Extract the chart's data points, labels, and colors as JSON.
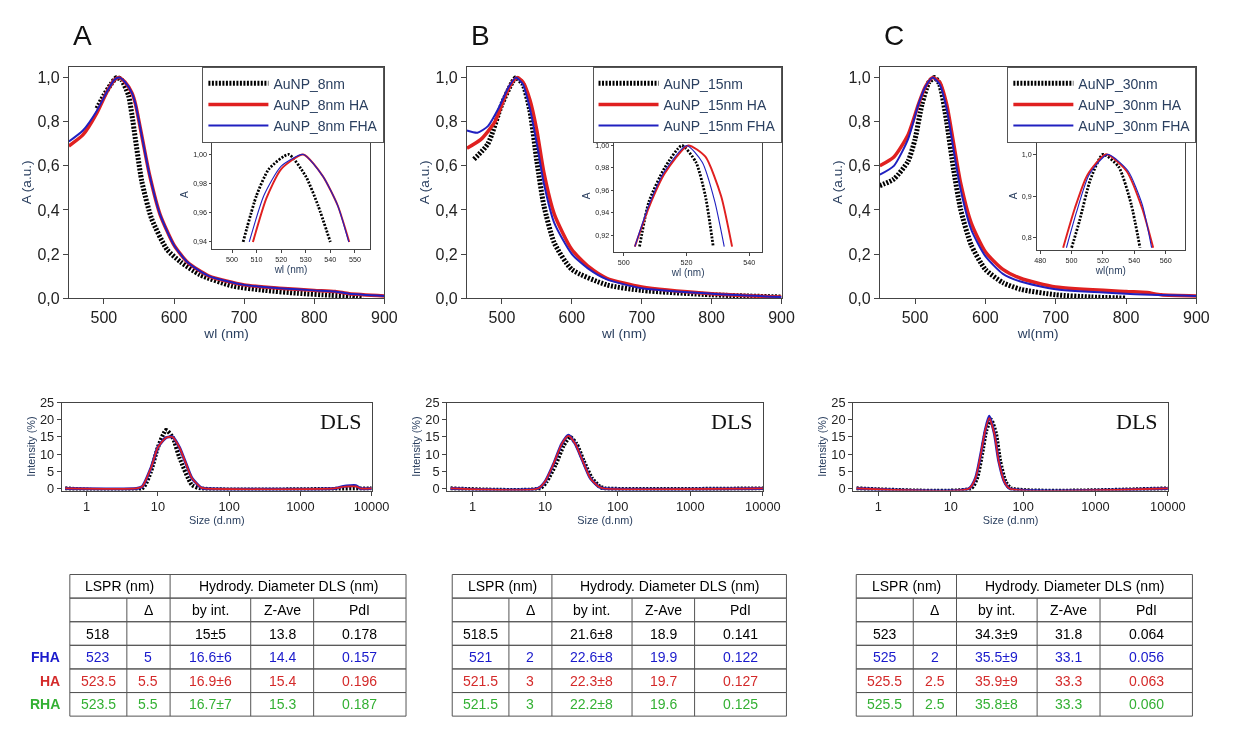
{
  "chart_data": [
    {
      "type": "line",
      "title": "A",
      "xlabel": "wl (nm)",
      "ylabel": "A (a.u.)",
      "xlim": [
        450,
        900
      ],
      "ylim": [
        0,
        1.05
      ],
      "xticks": [
        500,
        600,
        700,
        800,
        900
      ],
      "yticks": [
        {
          "value": 0,
          "label": "0,0"
        },
        {
          "value": 0.2,
          "label": "0,2"
        },
        {
          "value": 0.4,
          "label": "0,4"
        },
        {
          "value": 0.6,
          "label": "0,6"
        },
        {
          "value": 0.8,
          "label": "0,8"
        },
        {
          "value": 1.0,
          "label": "1,0"
        }
      ],
      "legend": "top right",
      "series": [
        {
          "name": "AuNP_8nm",
          "color": "#000000",
          "line_style": "dotted",
          "x": [
            490,
            500,
            510,
            518,
            525,
            535,
            540,
            554,
            568,
            590,
            609,
            637,
            683,
            730,
            776,
            823,
            851,
            870
          ],
          "values": [
            0.86,
            0.92,
            0.97,
            1.0,
            0.99,
            0.92,
            0.83,
            0.53,
            0.36,
            0.22,
            0.165,
            0.106,
            0.055,
            0.035,
            0.022,
            0.013,
            0.008,
            0.0
          ]
        },
        {
          "name": "AuNP_8nm HA",
          "color": "#e02020",
          "line_style": "solid",
          "x": [
            450,
            470,
            490,
            505,
            515,
            522,
            530,
            540,
            545,
            555,
            565,
            580,
            600,
            620,
            650,
            700,
            750,
            800,
            830,
            850,
            900
          ],
          "values": [
            0.69,
            0.74,
            0.84,
            0.94,
            0.99,
            1.0,
            0.98,
            0.93,
            0.88,
            0.72,
            0.56,
            0.38,
            0.24,
            0.16,
            0.1,
            0.06,
            0.045,
            0.035,
            0.03,
            0.02,
            0.01
          ]
        },
        {
          "name": "AuNP_8nm FHA",
          "color": "#2020c0",
          "line_style": "solid",
          "x": [
            450,
            470,
            490,
            505,
            515,
            522,
            530,
            540,
            545,
            555,
            565,
            580,
            600,
            620,
            650,
            700,
            750,
            800,
            830,
            850,
            900
          ],
          "values": [
            0.71,
            0.76,
            0.85,
            0.94,
            0.99,
            1.0,
            0.98,
            0.93,
            0.88,
            0.72,
            0.56,
            0.38,
            0.24,
            0.16,
            0.1,
            0.06,
            0.045,
            0.035,
            0.03,
            0.02,
            0.01
          ]
        }
      ]
    },
    {
      "type": "line",
      "xlabel": "wl (nm)",
      "ylabel": "A",
      "xlim": [
        492,
        556
      ],
      "ylim": [
        0.935,
        1.01
      ],
      "xticks": [
        500,
        510,
        520,
        530,
        540,
        550
      ],
      "yticks": [
        {
          "value": 0.94,
          "label": "0,94"
        },
        {
          "value": 0.96,
          "label": "0,96"
        },
        {
          "value": 0.98,
          "label": "0,98"
        },
        {
          "value": 1.0,
          "label": "1,00"
        }
      ],
      "series": [
        {
          "color": "#000000",
          "line_style": "dotted",
          "x": [
            504.5,
            510,
            515,
            523,
            530,
            535,
            540
          ],
          "values": [
            0.94,
            0.972,
            0.99,
            1.0,
            0.985,
            0.965,
            0.94
          ]
        },
        {
          "color": "#e02020",
          "line_style": "solid",
          "x": [
            508.5,
            514,
            520,
            529,
            537,
            543,
            547.7
          ],
          "values": [
            0.94,
            0.97,
            0.99,
            1.0,
            0.985,
            0.965,
            0.94
          ]
        },
        {
          "color": "#2020c0",
          "line_style": "solid",
          "x": [
            507,
            513,
            520,
            529,
            537,
            543,
            547.5
          ],
          "values": [
            0.94,
            0.972,
            0.992,
            1.0,
            0.985,
            0.965,
            0.94
          ]
        }
      ]
    },
    {
      "type": "line",
      "title": "B",
      "xlabel": "wl (nm)",
      "ylabel": "A (a.u.)",
      "xlim": [
        450,
        900
      ],
      "ylim": [
        0,
        1.05
      ],
      "xticks": [
        500,
        600,
        700,
        800,
        900
      ],
      "yticks": [
        {
          "value": 0,
          "label": "0,0"
        },
        {
          "value": 0.2,
          "label": "0,2"
        },
        {
          "value": 0.4,
          "label": "0,4"
        },
        {
          "value": 0.6,
          "label": "0,6"
        },
        {
          "value": 0.8,
          "label": "0,8"
        },
        {
          "value": 1.0,
          "label": "1,0"
        }
      ],
      "legend": "top right",
      "series": [
        {
          "name": "AuNP_15nm",
          "color": "#000000",
          "line_style": "dotted",
          "x": [
            460,
            480,
            500,
            515,
            520,
            530,
            540,
            550,
            560,
            575,
            600,
            650,
            700,
            800,
            900
          ],
          "values": [
            0.63,
            0.7,
            0.88,
            0.98,
            1.0,
            0.97,
            0.85,
            0.62,
            0.42,
            0.25,
            0.13,
            0.06,
            0.035,
            0.015,
            0.005
          ]
        },
        {
          "name": "AuNP_15nm HA",
          "color": "#e02020",
          "line_style": "solid",
          "x": [
            450,
            470,
            490,
            505,
            515,
            522,
            530,
            540,
            550,
            560,
            575,
            600,
            625,
            650,
            700,
            800,
            900
          ],
          "values": [
            0.68,
            0.72,
            0.8,
            0.92,
            0.98,
            1.0,
            0.98,
            0.9,
            0.76,
            0.57,
            0.38,
            0.22,
            0.14,
            0.09,
            0.05,
            0.02,
            0.005
          ]
        },
        {
          "name": "AuNP_15nm FHA",
          "color": "#2020c0",
          "line_style": "solid",
          "x": [
            450,
            465,
            480,
            495,
            510,
            520,
            530,
            540,
            550,
            560,
            575,
            600,
            625,
            650,
            700,
            800,
            900
          ],
          "values": [
            0.76,
            0.75,
            0.78,
            0.86,
            0.96,
            1.0,
            0.97,
            0.86,
            0.7,
            0.52,
            0.34,
            0.2,
            0.13,
            0.085,
            0.045,
            0.02,
            0.005
          ]
        }
      ]
    },
    {
      "type": "line",
      "xlabel": "wl (nm)",
      "ylabel": "A",
      "xlim": [
        497,
        544
      ],
      "ylim": [
        0.905,
        1.005
      ],
      "xticks": [
        500,
        520,
        540
      ],
      "yticks": [
        {
          "value": 0.92,
          "label": "0,92"
        },
        {
          "value": 0.94,
          "label": "0,94"
        },
        {
          "value": 0.96,
          "label": "0,96"
        },
        {
          "value": 0.98,
          "label": "0,98"
        },
        {
          "value": 1.0,
          "label": "1,00"
        }
      ],
      "series": [
        {
          "color": "#000000",
          "line_style": "dotted",
          "x": [
            505,
            508,
            513,
            518.5,
            523,
            526,
            528.5
          ],
          "values": [
            0.91,
            0.95,
            0.98,
            1.0,
            0.985,
            0.955,
            0.91
          ]
        },
        {
          "color": "#e02020",
          "line_style": "solid",
          "x": [
            503.5,
            508,
            513,
            520.5,
            526,
            531,
            534.5
          ],
          "values": [
            0.91,
            0.945,
            0.975,
            1.0,
            0.99,
            0.955,
            0.91
          ]
        },
        {
          "color": "#2020c0",
          "line_style": "solid",
          "x": [
            503.5,
            508,
            513,
            520,
            525,
            529,
            532
          ],
          "values": [
            0.91,
            0.947,
            0.977,
            1.0,
            0.985,
            0.95,
            0.91
          ]
        }
      ]
    },
    {
      "type": "line",
      "title": "C",
      "xlabel": "wl(nm)",
      "ylabel": "A (a.u.)",
      "xlim": [
        450,
        900
      ],
      "ylim": [
        0,
        1.05
      ],
      "xticks": [
        500,
        600,
        700,
        800,
        900
      ],
      "yticks": [
        {
          "value": 0,
          "label": "0,0"
        },
        {
          "value": 0.2,
          "label": "0,2"
        },
        {
          "value": 0.4,
          "label": "0,4"
        },
        {
          "value": 0.6,
          "label": "0,6"
        },
        {
          "value": 0.8,
          "label": "0,8"
        },
        {
          "value": 1.0,
          "label": "1,0"
        }
      ],
      "legend": "top right",
      "series": [
        {
          "name": "AuNP_30nm",
          "color": "#000000",
          "line_style": "dotted",
          "x": [
            450,
            470,
            490,
            500,
            510,
            520,
            528,
            535,
            545,
            555,
            565,
            580,
            600,
            625,
            650,
            700,
            750,
            800
          ],
          "values": [
            0.51,
            0.54,
            0.62,
            0.72,
            0.88,
            0.98,
            1.0,
            0.97,
            0.8,
            0.58,
            0.4,
            0.24,
            0.13,
            0.07,
            0.04,
            0.015,
            0.005,
            0.0
          ]
        },
        {
          "name": "AuNP_30nm HA",
          "color": "#e02020",
          "line_style": "solid",
          "x": [
            450,
            470,
            490,
            505,
            515,
            525,
            535,
            545,
            555,
            565,
            580,
            600,
            625,
            650,
            700,
            800,
            830,
            850,
            900
          ],
          "values": [
            0.6,
            0.64,
            0.74,
            0.88,
            0.96,
            1.0,
            0.98,
            0.88,
            0.7,
            0.52,
            0.34,
            0.21,
            0.13,
            0.09,
            0.05,
            0.03,
            0.025,
            0.015,
            0.01
          ]
        },
        {
          "name": "AuNP_30nm FHA",
          "color": "#2020c0",
          "line_style": "solid",
          "x": [
            450,
            470,
            490,
            505,
            515,
            525,
            535,
            545,
            555,
            565,
            580,
            600,
            625,
            650,
            700,
            800,
            900
          ],
          "values": [
            0.56,
            0.6,
            0.72,
            0.88,
            0.96,
            1.0,
            0.97,
            0.86,
            0.67,
            0.49,
            0.31,
            0.19,
            0.11,
            0.075,
            0.04,
            0.02,
            0.01
          ]
        }
      ]
    },
    {
      "type": "line",
      "xlabel": "wl(nm)",
      "ylabel": "A",
      "xlim": [
        478,
        572
      ],
      "ylim": [
        0.77,
        1.03
      ],
      "xticks": [
        480,
        500,
        520,
        540,
        560
      ],
      "yticks": [
        {
          "value": 0.8,
          "label": "0,8"
        },
        {
          "value": 0.9,
          "label": "0,9"
        },
        {
          "value": 1.0,
          "label": "1,0"
        }
      ],
      "series": [
        {
          "color": "#000000",
          "line_style": "dotted",
          "x": [
            500,
            505,
            512,
            520,
            530,
            538,
            543.6
          ],
          "values": [
            0.776,
            0.84,
            0.94,
            1.0,
            0.97,
            0.88,
            0.776
          ]
        },
        {
          "color": "#e02020",
          "line_style": "solid",
          "x": [
            494.6,
            502,
            510,
            522,
            535,
            545,
            552
          ],
          "values": [
            0.776,
            0.87,
            0.95,
            1.0,
            0.96,
            0.87,
            0.776
          ]
        },
        {
          "color": "#2020c0",
          "line_style": "solid",
          "x": [
            496.7,
            503,
            511,
            523,
            536,
            545,
            551
          ],
          "values": [
            0.776,
            0.86,
            0.95,
            1.0,
            0.96,
            0.88,
            0.776
          ]
        }
      ]
    },
    {
      "type": "line",
      "xlabel": "Size (d.nm)",
      "ylabel": "Intensity (%)",
      "log": "x",
      "xlim": [
        0.45,
        10000
      ],
      "ylim": [
        -0.6,
        25
      ],
      "xticks": [
        1,
        10,
        100,
        1000,
        10000
      ],
      "yticks": [
        0,
        5,
        10,
        15,
        20,
        25
      ],
      "annotations": [
        "DLS"
      ],
      "series": [
        {
          "color": "#000000",
          "line_style": "dotted",
          "x": [
            0.5,
            6,
            8,
            10,
            13,
            16,
            20,
            30,
            40,
            10000
          ],
          "values": [
            0,
            0,
            5,
            12,
            17,
            15,
            9,
            1,
            0,
            0
          ]
        },
        {
          "color": "#2020c0",
          "line_style": "solid",
          "x": [
            0.5,
            5,
            6,
            8,
            10,
            13,
            16,
            20,
            25,
            30,
            40,
            45,
            3000,
            4000,
            5000,
            6000,
            7000,
            10000
          ],
          "values": [
            0,
            0,
            0.5,
            6,
            12,
            14.8,
            15,
            12,
            7,
            3,
            0.3,
            0,
            0,
            0.6,
            0.8,
            0.8,
            0,
            0
          ]
        },
        {
          "color": "#e02020",
          "line_style": "solid",
          "x": [
            0.5,
            5,
            6,
            8,
            10,
            13,
            16,
            20,
            25,
            30,
            40,
            45,
            3000,
            4000,
            5000,
            6000,
            7000,
            10000
          ],
          "values": [
            0,
            0,
            0.5,
            6,
            12,
            14.8,
            15,
            12,
            7,
            3,
            0.3,
            0,
            0,
            0.5,
            0.6,
            0.6,
            0,
            0
          ]
        }
      ]
    },
    {
      "type": "line",
      "xlabel": "Size (d.nm)",
      "ylabel": "Intensity (%)",
      "log": "x",
      "xlim": [
        0.45,
        10000
      ],
      "ylim": [
        -0.6,
        25
      ],
      "xticks": [
        1,
        10,
        100,
        1000,
        10000
      ],
      "yticks": [
        0,
        5,
        10,
        15,
        20,
        25
      ],
      "annotations": [
        "DLS"
      ],
      "series": [
        {
          "color": "#000000",
          "line_style": "dotted",
          "x": [
            0.5,
            8.5,
            10.5,
            14,
            18,
            22,
            27,
            34,
            44,
            57,
            68,
            10000
          ],
          "values": [
            0,
            0,
            2,
            7,
            12.5,
            15,
            13,
            8,
            3,
            0.5,
            0,
            0
          ]
        },
        {
          "color": "#2020c0",
          "line_style": "solid",
          "x": [
            0.5,
            8,
            10,
            13,
            17,
            21,
            26,
            33,
            42,
            55,
            65,
            10000
          ],
          "values": [
            0,
            0,
            2,
            7,
            13,
            15.5,
            13,
            8,
            3,
            0.5,
            0,
            0
          ]
        },
        {
          "color": "#e02020",
          "line_style": "solid",
          "x": [
            0.5,
            8,
            10,
            13,
            17,
            21,
            26,
            33,
            42,
            55,
            65,
            10000
          ],
          "values": [
            0,
            0,
            2,
            7,
            13,
            15.3,
            13,
            8,
            3,
            0.5,
            0,
            0
          ]
        }
      ]
    },
    {
      "type": "line",
      "xlabel": "Size (d.nm)",
      "ylabel": "Intensity (%)",
      "log": "x",
      "xlim": [
        0.45,
        10000
      ],
      "ylim": [
        -0.6,
        25
      ],
      "xticks": [
        1,
        10,
        100,
        1000,
        10000
      ],
      "yticks": [
        0,
        5,
        10,
        15,
        20,
        25
      ],
      "annotations": [
        "DLS"
      ],
      "series": [
        {
          "color": "#000000",
          "line_style": "dotted",
          "x": [
            0.5,
            19,
            23,
            27,
            31,
            36,
            42,
            48,
            57,
            68,
            10000
          ],
          "values": [
            0,
            0,
            3,
            10,
            17,
            20,
            16,
            8,
            2,
            0,
            0
          ]
        },
        {
          "color": "#2020c0",
          "line_style": "solid",
          "x": [
            0.5,
            18,
            22,
            26,
            30,
            34,
            40,
            46,
            55,
            65,
            10000
          ],
          "values": [
            0,
            0,
            3,
            10,
            17,
            21,
            16,
            8,
            2,
            0,
            0
          ]
        },
        {
          "color": "#e02020",
          "line_style": "solid",
          "x": [
            0.5,
            18,
            22,
            26,
            30,
            34,
            40,
            46,
            55,
            65,
            10000
          ],
          "values": [
            0,
            0,
            3,
            10,
            17,
            20.5,
            16,
            8,
            2,
            0,
            0
          ]
        }
      ]
    },
    {
      "type": "other",
      "y_categories": [
        null,
        null,
        null,
        "FHA",
        "HA",
        "RHA"
      ],
      "colors": [
        "#000000",
        "#000000",
        "#000000",
        "#1a1acc",
        "#d42a2a",
        "#33b033"
      ],
      "cell_labels": [
        [
          "LSPR (nm)",
          null,
          "Hydrody. Diameter DLS (nm)",
          null,
          null
        ],
        [
          null,
          "Δ",
          "by int.",
          "Z-Ave",
          "PdI"
        ],
        [
          "518",
          null,
          "15±5",
          "13.8",
          "0.178"
        ],
        [
          "523",
          "5",
          "16.6±6",
          "14.4",
          "0.157"
        ],
        [
          "523.5",
          "5.5",
          "16.9±6",
          "15.4",
          "0.196"
        ],
        [
          "523.5",
          "5.5",
          "16.7±7",
          "15.3",
          "0.187"
        ]
      ]
    },
    {
      "type": "other",
      "colors": [
        "#000000",
        "#000000",
        "#000000",
        "#1a1acc",
        "#d42a2a",
        "#33b033"
      ],
      "cell_labels": [
        [
          "LSPR (nm)",
          null,
          "Hydrody. Diameter DLS (nm)",
          null,
          null
        ],
        [
          null,
          "Δ",
          "by int.",
          "Z-Ave",
          "PdI"
        ],
        [
          "518.5",
          null,
          "21.6±8",
          "18.9",
          "0.141"
        ],
        [
          "521",
          "2",
          "22.6±8",
          "19.9",
          "0.122"
        ],
        [
          "521.5",
          "3",
          "22.3±8",
          "19.7",
          "0.127"
        ],
        [
          "521.5",
          "3",
          "22.2±8",
          "19.6",
          "0.125"
        ]
      ]
    },
    {
      "type": "other",
      "colors": [
        "#000000",
        "#000000",
        "#000000",
        "#1a1acc",
        "#d42a2a",
        "#33b033"
      ],
      "cell_labels": [
        [
          "LSPR (nm)",
          null,
          "Hydrody. Diameter DLS (nm)",
          null,
          null
        ],
        [
          null,
          "Δ",
          "by int.",
          "Z-Ave",
          "PdI"
        ],
        [
          "523",
          null,
          "34.3±9",
          "31.8",
          "0.064"
        ],
        [
          "525",
          "2",
          "35.5±9",
          "33.1",
          "0.056"
        ],
        [
          "525.5",
          "2.5",
          "35.9±9",
          "33.3",
          "0.063"
        ],
        [
          "525.5",
          "2.5",
          "35.8±8",
          "33.3",
          "0.060"
        ]
      ]
    }
  ]
}
